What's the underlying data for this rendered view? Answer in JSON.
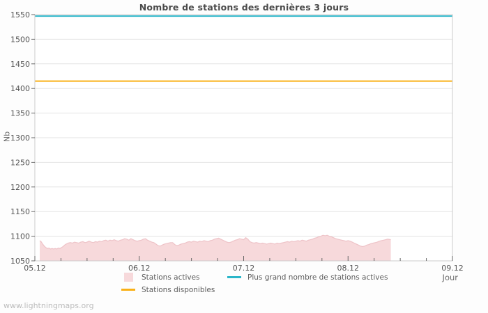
{
  "page": {
    "watermark": "www.lightningmaps.org"
  },
  "chart_data": {
    "type": "area",
    "title": "Nombre de stations des dernières 3 jours",
    "xlabel": "Jour",
    "ylabel": "Nb",
    "ylim": [
      1050,
      1550
    ],
    "xlim_days": [
      0,
      4
    ],
    "grid": true,
    "legend_position": "bottom",
    "y_ticks": [
      1050,
      1100,
      1150,
      1200,
      1250,
      1300,
      1350,
      1400,
      1450,
      1500,
      1550
    ],
    "x_ticks": [
      {
        "label": "05.12",
        "day": 0
      },
      {
        "label": "06.12",
        "day": 1
      },
      {
        "label": "07.12",
        "day": 2
      },
      {
        "label": "08.12",
        "day": 3
      },
      {
        "label": "09.12",
        "day": 4
      }
    ],
    "x_minor_step_days": 0.25,
    "colors": {
      "plot_bg": "#ffffff",
      "grid": "#e3e3e3",
      "border": "#cccccc",
      "tick": "#666666"
    },
    "series": [
      {
        "name": "Stations actives",
        "kind": "area",
        "fill": "#f7d9db",
        "edge": "#eec3c8",
        "points": [
          [
            0.047,
            1091
          ],
          [
            0.06,
            1089
          ],
          [
            0.075,
            1084
          ],
          [
            0.09,
            1080
          ],
          [
            0.105,
            1077
          ],
          [
            0.12,
            1075
          ],
          [
            0.135,
            1076
          ],
          [
            0.15,
            1074
          ],
          [
            0.165,
            1075
          ],
          [
            0.18,
            1074
          ],
          [
            0.195,
            1075
          ],
          [
            0.21,
            1074
          ],
          [
            0.225,
            1076
          ],
          [
            0.24,
            1075
          ],
          [
            0.255,
            1077
          ],
          [
            0.27,
            1079
          ],
          [
            0.285,
            1082
          ],
          [
            0.3,
            1084
          ],
          [
            0.32,
            1086
          ],
          [
            0.34,
            1087
          ],
          [
            0.36,
            1086
          ],
          [
            0.38,
            1088
          ],
          [
            0.4,
            1087
          ],
          [
            0.42,
            1086
          ],
          [
            0.44,
            1088
          ],
          [
            0.46,
            1089
          ],
          [
            0.48,
            1087
          ],
          [
            0.5,
            1088
          ],
          [
            0.52,
            1090
          ],
          [
            0.54,
            1088
          ],
          [
            0.56,
            1087
          ],
          [
            0.58,
            1089
          ],
          [
            0.6,
            1088
          ],
          [
            0.62,
            1090
          ],
          [
            0.64,
            1089
          ],
          [
            0.66,
            1091
          ],
          [
            0.68,
            1092
          ],
          [
            0.7,
            1090
          ],
          [
            0.72,
            1092
          ],
          [
            0.74,
            1091
          ],
          [
            0.76,
            1093
          ],
          [
            0.78,
            1091
          ],
          [
            0.8,
            1090
          ],
          [
            0.82,
            1092
          ],
          [
            0.84,
            1093
          ],
          [
            0.86,
            1095
          ],
          [
            0.88,
            1094
          ],
          [
            0.9,
            1092
          ],
          [
            0.92,
            1095
          ],
          [
            0.94,
            1093
          ],
          [
            0.96,
            1091
          ],
          [
            0.98,
            1090
          ],
          [
            1.0,
            1091
          ],
          [
            1.02,
            1092
          ],
          [
            1.04,
            1094
          ],
          [
            1.06,
            1095
          ],
          [
            1.08,
            1092
          ],
          [
            1.1,
            1090
          ],
          [
            1.12,
            1088
          ],
          [
            1.14,
            1087
          ],
          [
            1.16,
            1084
          ],
          [
            1.18,
            1081
          ],
          [
            1.2,
            1080
          ],
          [
            1.22,
            1082
          ],
          [
            1.24,
            1084
          ],
          [
            1.26,
            1085
          ],
          [
            1.28,
            1086
          ],
          [
            1.3,
            1087
          ],
          [
            1.32,
            1087
          ],
          [
            1.34,
            1083
          ],
          [
            1.36,
            1081
          ],
          [
            1.38,
            1082
          ],
          [
            1.4,
            1084
          ],
          [
            1.42,
            1085
          ],
          [
            1.44,
            1086
          ],
          [
            1.46,
            1088
          ],
          [
            1.48,
            1089
          ],
          [
            1.5,
            1088
          ],
          [
            1.52,
            1090
          ],
          [
            1.54,
            1089
          ],
          [
            1.56,
            1088
          ],
          [
            1.58,
            1090
          ],
          [
            1.6,
            1089
          ],
          [
            1.62,
            1091
          ],
          [
            1.64,
            1090
          ],
          [
            1.66,
            1089
          ],
          [
            1.68,
            1091
          ],
          [
            1.7,
            1092
          ],
          [
            1.72,
            1094
          ],
          [
            1.74,
            1095
          ],
          [
            1.76,
            1096
          ],
          [
            1.78,
            1094
          ],
          [
            1.8,
            1092
          ],
          [
            1.82,
            1090
          ],
          [
            1.84,
            1088
          ],
          [
            1.86,
            1087
          ],
          [
            1.88,
            1088
          ],
          [
            1.9,
            1090
          ],
          [
            1.92,
            1092
          ],
          [
            1.94,
            1093
          ],
          [
            1.96,
            1095
          ],
          [
            1.98,
            1094
          ],
          [
            2.0,
            1093
          ],
          [
            2.02,
            1097
          ],
          [
            2.04,
            1094
          ],
          [
            2.06,
            1089
          ],
          [
            2.08,
            1087
          ],
          [
            2.1,
            1086
          ],
          [
            2.12,
            1087
          ],
          [
            2.14,
            1086
          ],
          [
            2.16,
            1085
          ],
          [
            2.18,
            1086
          ],
          [
            2.2,
            1085
          ],
          [
            2.22,
            1084
          ],
          [
            2.24,
            1085
          ],
          [
            2.26,
            1086
          ],
          [
            2.28,
            1085
          ],
          [
            2.3,
            1084
          ],
          [
            2.32,
            1086
          ],
          [
            2.34,
            1085
          ],
          [
            2.36,
            1086
          ],
          [
            2.38,
            1087
          ],
          [
            2.4,
            1088
          ],
          [
            2.42,
            1089
          ],
          [
            2.44,
            1088
          ],
          [
            2.46,
            1090
          ],
          [
            2.48,
            1089
          ],
          [
            2.5,
            1090
          ],
          [
            2.52,
            1091
          ],
          [
            2.54,
            1090
          ],
          [
            2.56,
            1092
          ],
          [
            2.58,
            1091
          ],
          [
            2.6,
            1090
          ],
          [
            2.62,
            1092
          ],
          [
            2.64,
            1093
          ],
          [
            2.66,
            1094
          ],
          [
            2.68,
            1096
          ],
          [
            2.7,
            1097
          ],
          [
            2.72,
            1099
          ],
          [
            2.74,
            1100
          ],
          [
            2.76,
            1102
          ],
          [
            2.78,
            1101
          ],
          [
            2.8,
            1102
          ],
          [
            2.82,
            1100
          ],
          [
            2.84,
            1099
          ],
          [
            2.86,
            1097
          ],
          [
            2.88,
            1095
          ],
          [
            2.9,
            1094
          ],
          [
            2.92,
            1093
          ],
          [
            2.94,
            1092
          ],
          [
            2.96,
            1091
          ],
          [
            2.98,
            1090
          ],
          [
            3.0,
            1091
          ],
          [
            3.02,
            1090
          ],
          [
            3.04,
            1088
          ],
          [
            3.06,
            1086
          ],
          [
            3.08,
            1084
          ],
          [
            3.1,
            1082
          ],
          [
            3.12,
            1080
          ],
          [
            3.14,
            1079
          ],
          [
            3.16,
            1080
          ],
          [
            3.18,
            1082
          ],
          [
            3.2,
            1083
          ],
          [
            3.22,
            1085
          ],
          [
            3.24,
            1086
          ],
          [
            3.26,
            1087
          ],
          [
            3.28,
            1088
          ],
          [
            3.3,
            1090
          ],
          [
            3.32,
            1091
          ],
          [
            3.34,
            1092
          ],
          [
            3.36,
            1093
          ],
          [
            3.38,
            1094
          ],
          [
            3.41,
            1093
          ]
        ]
      },
      {
        "name": "Plus grand nombre de stations actives",
        "kind": "hline",
        "color": "#2bb6c9",
        "value": 1547
      },
      {
        "name": "Stations disponibles",
        "kind": "hline",
        "color": "#f9b016",
        "value": 1415
      }
    ]
  }
}
